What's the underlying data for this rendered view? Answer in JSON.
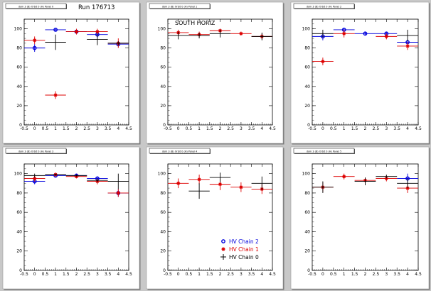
{
  "colors": {
    "background": "#c8c8c8",
    "pad": "#ffffff",
    "chain2": "#0000dd",
    "chain1": "#dd0000",
    "chain0": "#000000"
  },
  "run_label": "Run 176713",
  "chart_data": [
    {
      "type": "scatter",
      "title": "dom 3 (B) Orbit 0 (H) Panel 0",
      "annotation": "",
      "xlim": [
        -0.5,
        4.5
      ],
      "ylim": [
        0,
        110
      ],
      "xticks": [
        "-0.5",
        "0",
        "0.5",
        "1",
        "1.5",
        "2",
        "2.5",
        "3",
        "3.5",
        "4",
        "4.5"
      ],
      "yticks": [
        "0",
        "20",
        "40",
        "60",
        "80",
        "100"
      ],
      "series": [
        {
          "color": "chain2",
          "marker": "circle",
          "points": [
            [
              0,
              80,
              4
            ],
            [
              1,
              99,
              1.5
            ],
            [
              2,
              97,
              1.5
            ],
            [
              3,
              94,
              4
            ],
            [
              4,
              84,
              3
            ]
          ]
        },
        {
          "color": "chain1",
          "marker": "star",
          "points": [
            [
              0,
              88,
              4
            ],
            [
              1,
              31,
              4
            ],
            [
              2,
              97,
              3
            ],
            [
              3,
              97,
              3
            ],
            [
              4,
              85,
              5
            ]
          ]
        },
        {
          "color": "chain0",
          "marker": "cross",
          "points": [
            [
              1,
              86,
              8
            ],
            [
              3,
              89,
              6
            ],
            [
              4,
              85,
              2
            ]
          ]
        }
      ]
    },
    {
      "type": "scatter",
      "title": "dom 3 (B) Orbit 0 (H) Panel 1",
      "annotation": "SOUTH HORIZ",
      "xlim": [
        -0.5,
        4.5
      ],
      "ylim": [
        0,
        110
      ],
      "xticks": [
        "-0.5",
        "0",
        "0.5",
        "1",
        "1.5",
        "2",
        "2.5",
        "3",
        "3.5",
        "4",
        "4.5"
      ],
      "yticks": [
        "0",
        "20",
        "40",
        "60",
        "80",
        "100"
      ],
      "series": [
        {
          "color": "chain2",
          "marker": "circle",
          "points": []
        },
        {
          "color": "chain1",
          "marker": "star",
          "points": [
            [
              0,
              96,
              3
            ],
            [
              1,
              94,
              3
            ],
            [
              2,
              98,
              2
            ],
            [
              3,
              95,
              2
            ],
            [
              4,
              92,
              3
            ]
          ]
        },
        {
          "color": "chain0",
          "marker": "cross",
          "points": [
            [
              0,
              93,
              4
            ],
            [
              1,
              93,
              3
            ],
            [
              2,
              95,
              4
            ],
            [
              4,
              92,
              4
            ]
          ]
        }
      ]
    },
    {
      "type": "scatter",
      "title": "dom 3 (B) Orbit 0 (H) Panel 2",
      "annotation": "",
      "xlim": [
        -0.5,
        4.5
      ],
      "ylim": [
        0,
        110
      ],
      "xticks": [
        "-0.5",
        "0",
        "0.5",
        "1",
        "1.5",
        "2",
        "2.5",
        "3",
        "3.5",
        "4",
        "4.5"
      ],
      "yticks": [
        "0",
        "20",
        "40",
        "60",
        "80",
        "100"
      ],
      "series": [
        {
          "color": "chain2",
          "marker": "circle",
          "points": [
            [
              0,
              92,
              4
            ],
            [
              1,
              99,
              2
            ],
            [
              2,
              95,
              1.5
            ],
            [
              3,
              95,
              2
            ],
            [
              4,
              86,
              3
            ]
          ]
        },
        {
          "color": "chain1",
          "marker": "star",
          "points": [
            [
              0,
              66,
              4
            ],
            [
              1,
              95,
              4
            ],
            [
              3,
              92,
              3
            ],
            [
              4,
              82,
              4
            ]
          ]
        },
        {
          "color": "chain0",
          "marker": "cross",
          "points": [
            [
              0,
              95,
              4
            ],
            [
              4,
              93,
              6
            ]
          ]
        }
      ]
    },
    {
      "type": "scatter",
      "title": "dom 3 (B) Orbit 0 (H) Panel 3",
      "annotation": "",
      "xlim": [
        -0.5,
        4.5
      ],
      "ylim": [
        0,
        110
      ],
      "xticks": [
        "-0.5",
        "0",
        "0.5",
        "1",
        "1.5",
        "2",
        "2.5",
        "3",
        "3.5",
        "4",
        "4.5"
      ],
      "yticks": [
        "0",
        "20",
        "40",
        "60",
        "80",
        "100"
      ],
      "series": [
        {
          "color": "chain2",
          "marker": "circle",
          "points": [
            [
              0,
              92,
              3
            ],
            [
              1,
              98,
              2
            ],
            [
              2,
              98,
              1.5
            ],
            [
              3,
              95,
              2
            ],
            [
              4,
              80,
              4
            ]
          ]
        },
        {
          "color": "chain1",
          "marker": "star",
          "points": [
            [
              0,
              95,
              3
            ],
            [
              1,
              99,
              2
            ],
            [
              2,
              97,
              1.5
            ],
            [
              3,
              92,
              3
            ],
            [
              4,
              80,
              4
            ]
          ]
        },
        {
          "color": "chain0",
          "marker": "cross",
          "points": [
            [
              0,
              98,
              2
            ],
            [
              1,
              99,
              1
            ],
            [
              2,
              98,
              1
            ],
            [
              3,
              93,
              2
            ],
            [
              4,
              92,
              8
            ]
          ]
        }
      ]
    },
    {
      "type": "scatter",
      "title": "dom 3 (B) Orbit 0 (H) Panel 4",
      "annotation": "",
      "xlim": [
        -0.5,
        4.5
      ],
      "ylim": [
        0,
        110
      ],
      "xticks": [
        "-0.5",
        "0",
        "0.5",
        "1",
        "1.5",
        "2",
        "2.5",
        "3",
        "3.5",
        "4",
        "4.5"
      ],
      "yticks": [
        "0",
        "20",
        "40",
        "60",
        "80",
        "100"
      ],
      "legend": {
        "position": "bottom-right",
        "entries": [
          {
            "label": "HV Chain 2",
            "color": "chain2",
            "marker": "circle"
          },
          {
            "label": "HV Chain 1",
            "color": "chain1",
            "marker": "star"
          },
          {
            "label": "HV Chain 0",
            "color": "chain0",
            "marker": "cross"
          }
        ]
      },
      "series": [
        {
          "color": "chain2",
          "marker": "circle",
          "points": []
        },
        {
          "color": "chain1",
          "marker": "star",
          "points": [
            [
              0,
              90,
              5
            ],
            [
              1,
              94,
              5
            ],
            [
              2,
              89,
              6
            ],
            [
              3,
              86,
              5
            ],
            [
              4,
              84,
              5
            ]
          ]
        },
        {
          "color": "chain0",
          "marker": "cross",
          "points": [
            [
              1,
              82,
              8
            ],
            [
              2,
              96,
              5
            ],
            [
              4,
              90,
              7
            ]
          ]
        }
      ]
    },
    {
      "type": "scatter",
      "title": "dom 3 (B) Orbit 0 (H) Panel 5",
      "annotation": "",
      "xlim": [
        -0.5,
        4.5
      ],
      "ylim": [
        0,
        110
      ],
      "xticks": [
        "-0.5",
        "0",
        "0.5",
        "1",
        "1.5",
        "2",
        "2.5",
        "3",
        "3.5",
        "4",
        "4.5"
      ],
      "yticks": [
        "0",
        "20",
        "40",
        "60",
        "80",
        "100"
      ],
      "series": [
        {
          "color": "chain2",
          "marker": "circle",
          "points": [
            [
              4,
              95,
              5
            ]
          ]
        },
        {
          "color": "chain1",
          "marker": "star",
          "points": [
            [
              0,
              86,
              5
            ],
            [
              1,
              97,
              3
            ],
            [
              2,
              93,
              3
            ],
            [
              3,
              95,
              3
            ],
            [
              4,
              85,
              5
            ]
          ]
        },
        {
          "color": "chain0",
          "marker": "cross",
          "points": [
            [
              0,
              86,
              6
            ],
            [
              2,
              92,
              4
            ],
            [
              3,
              97,
              2
            ],
            [
              4,
              90,
              5
            ]
          ]
        }
      ]
    }
  ]
}
